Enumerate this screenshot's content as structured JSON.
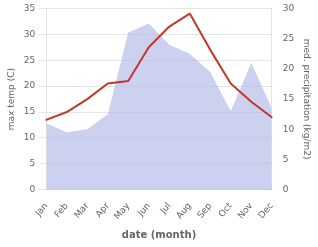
{
  "chart_data": {
    "type": "line",
    "xlabel": "date (month)",
    "ylabel": "max temp (C)",
    "y2label": "med. precipitation (kg/m2)",
    "categories": [
      "Jan",
      "Feb",
      "Mar",
      "Apr",
      "May",
      "Jun",
      "Jul",
      "Aug",
      "Sep",
      "Oct",
      "Nov",
      "Dec"
    ],
    "series": [
      {
        "type": "area",
        "axis": "y2",
        "color": "#b0b8e8",
        "values": [
          11.0,
          9.5,
          10.0,
          12.5,
          26.0,
          27.5,
          24.0,
          22.5,
          19.5,
          13.0,
          21.0,
          13.5
        ]
      },
      {
        "type": "line",
        "color": "#c0392b",
        "values": [
          13.5,
          15.0,
          17.5,
          20.5,
          21.0,
          27.5,
          31.5,
          34.0,
          27.0,
          20.5,
          17.0,
          14.0
        ]
      }
    ],
    "ylim": [
      0,
      35
    ],
    "yticks": [
      0,
      5,
      10,
      15,
      20,
      25,
      30,
      35
    ],
    "y2lim": [
      0,
      30
    ],
    "y2ticks": [
      0,
      5,
      10,
      15,
      20,
      25,
      30
    ],
    "grid": true
  }
}
